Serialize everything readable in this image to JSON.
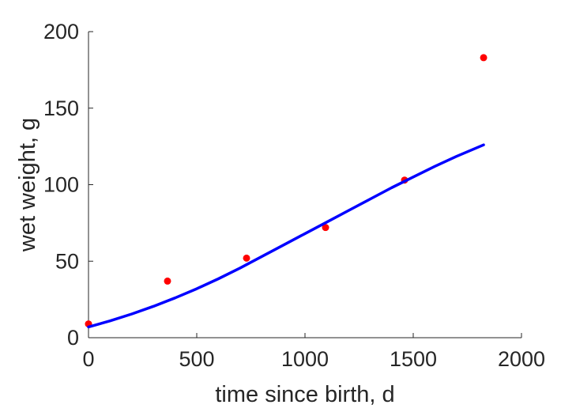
{
  "chart_data": {
    "type": "scatter",
    "title": "",
    "xlabel": "time since birth, d",
    "ylabel": "wet weight, g",
    "xlim": [
      0,
      2000
    ],
    "ylim": [
      0,
      200
    ],
    "xticks": [
      0,
      500,
      1000,
      1500,
      2000
    ],
    "yticks": [
      0,
      50,
      100,
      150,
      200
    ],
    "grid": false,
    "legend": "none",
    "series": [
      {
        "kind": "scatter",
        "color": "#ff0000",
        "x": [
          0,
          365,
          730,
          1095,
          1460,
          1825
        ],
        "y": [
          9,
          37,
          52,
          72,
          103,
          183
        ]
      },
      {
        "kind": "line",
        "color": "#0000ff",
        "x": [
          0,
          100,
          200,
          300,
          400,
          500,
          600,
          700,
          800,
          900,
          1000,
          1100,
          1200,
          1300,
          1400,
          1500,
          1600,
          1700,
          1825
        ],
        "y": [
          7,
          11,
          15.5,
          20.5,
          26,
          32,
          38.5,
          45.5,
          53,
          60.5,
          68,
          75.5,
          83,
          90.5,
          98,
          105,
          112,
          118.5,
          126
        ]
      }
    ]
  }
}
